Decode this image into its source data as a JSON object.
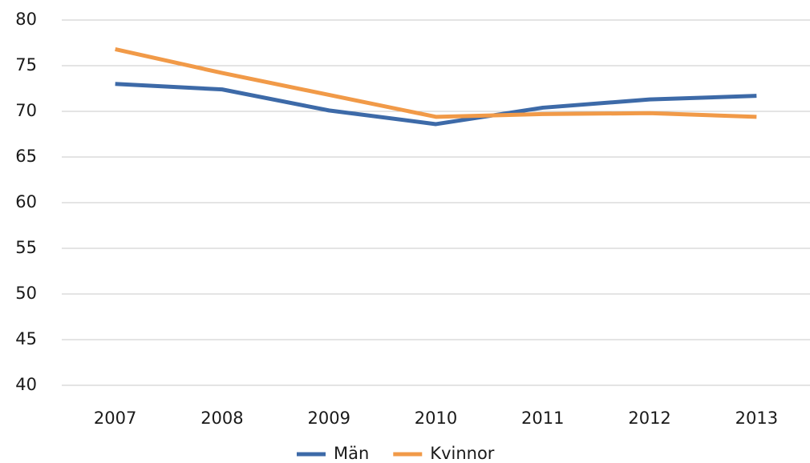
{
  "chart_data": {
    "type": "line",
    "categories": [
      "2007",
      "2008",
      "2009",
      "2010",
      "2011",
      "2012",
      "2013"
    ],
    "series": [
      {
        "name": "Män",
        "color": "#3d6aa8",
        "values": [
          73.0,
          72.4,
          70.1,
          68.6,
          70.4,
          71.3,
          71.7
        ]
      },
      {
        "name": "Kvinnor",
        "color": "#f19a48",
        "values": [
          76.8,
          74.2,
          71.8,
          69.4,
          69.7,
          69.8,
          69.4
        ]
      }
    ],
    "ylim": [
      40,
      80
    ],
    "yticks": [
      40,
      45,
      50,
      55,
      60,
      65,
      70,
      75,
      80
    ],
    "grid": true,
    "legend": "bottom"
  }
}
